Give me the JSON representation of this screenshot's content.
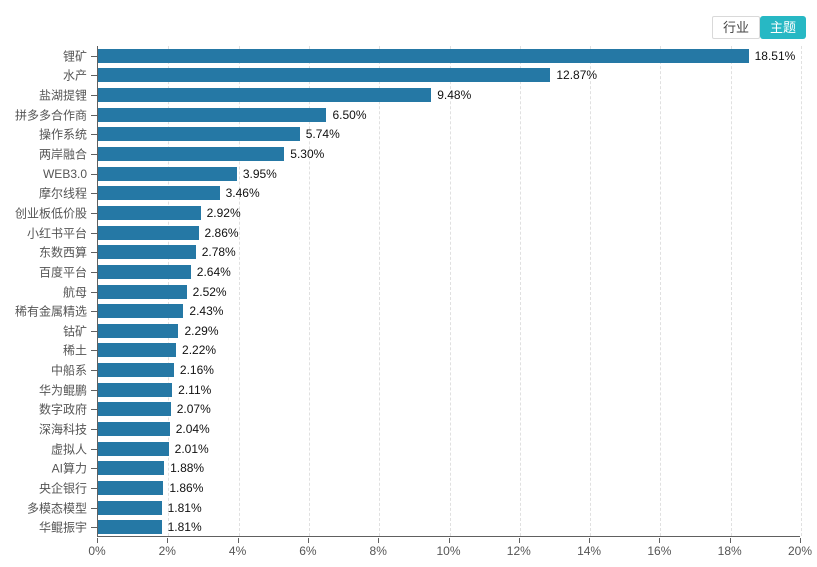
{
  "toggle": {
    "industry_label": "行业",
    "theme_label": "主题",
    "active": "主题",
    "active_bg": "#27b8c4"
  },
  "chart_data": {
    "type": "bar",
    "orientation": "horizontal",
    "title": "",
    "xlabel": "",
    "ylabel": "",
    "categories": [
      "锂矿",
      "水产",
      "盐湖提锂",
      "拼多多合作商",
      "操作系统",
      "两岸融合",
      "WEB3.0",
      "摩尔线程",
      "创业板低价股",
      "小红书平台",
      "东数西算",
      "百度平台",
      "航母",
      "稀有金属精选",
      "钴矿",
      "稀土",
      "中船系",
      "华为鲲鹏",
      "数字政府",
      "深海科技",
      "虚拟人",
      "AI算力",
      "央企银行",
      "多模态模型",
      "华鲲振宇"
    ],
    "values": [
      18.51,
      12.87,
      9.48,
      6.5,
      5.74,
      5.3,
      3.95,
      3.46,
      2.92,
      2.86,
      2.78,
      2.64,
      2.52,
      2.43,
      2.29,
      2.22,
      2.16,
      2.11,
      2.07,
      2.04,
      2.01,
      1.88,
      1.86,
      1.81,
      1.81
    ],
    "value_labels": [
      "18.51%",
      "12.87%",
      "9.48%",
      "6.50%",
      "5.74%",
      "5.30%",
      "3.95%",
      "3.46%",
      "2.92%",
      "2.86%",
      "2.78%",
      "2.64%",
      "2.52%",
      "2.43%",
      "2.29%",
      "2.22%",
      "2.16%",
      "2.11%",
      "2.07%",
      "2.04%",
      "2.01%",
      "1.88%",
      "1.86%",
      "1.81%",
      "1.81%"
    ],
    "x_axis_ticks": [
      "0%",
      "2%",
      "4%",
      "6%",
      "8%",
      "10%",
      "12%",
      "14%",
      "16%",
      "18%",
      "20%"
    ],
    "xlim": [
      0,
      20
    ],
    "grid": "vertical-dashed",
    "legend": "none",
    "bar_color": "#2578a5"
  }
}
